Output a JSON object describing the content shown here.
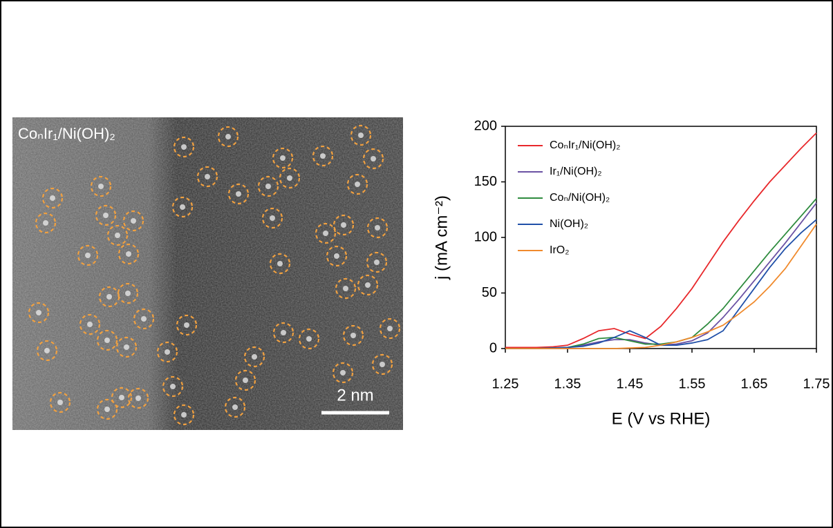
{
  "image": {
    "label": "CoₙIr₁/Ni(OH)₂",
    "scale_bar": "2 nm"
  },
  "chart_data": {
    "type": "line",
    "xlabel": "E (V vs RHE)",
    "ylabel": "j (mA cm⁻²)",
    "x": [
      1.25,
      1.275,
      1.3,
      1.325,
      1.35,
      1.375,
      1.4,
      1.425,
      1.45,
      1.475,
      1.5,
      1.525,
      1.55,
      1.575,
      1.6,
      1.625,
      1.65,
      1.675,
      1.7,
      1.725,
      1.75
    ],
    "xlim": [
      1.25,
      1.75
    ],
    "xticks": [
      1.25,
      1.35,
      1.45,
      1.55,
      1.65,
      1.75
    ],
    "ylim": [
      0,
      200
    ],
    "yticks": [
      0,
      50,
      100,
      150,
      200
    ],
    "legend": "upper left",
    "series": [
      {
        "name": "CoₙIr₁/Ni(OH)₂",
        "color": "#e8282b",
        "values": [
          1,
          1,
          1,
          1.5,
          3,
          9,
          16,
          18,
          13,
          9,
          20,
          36,
          54,
          75,
          96,
          115,
          133,
          150,
          165,
          180,
          194
        ]
      },
      {
        "name": "Ir₁/Ni(OH)₂",
        "color": "#6a51a3",
        "values": [
          0,
          0,
          0,
          0.5,
          1,
          3,
          6,
          8,
          8,
          5,
          3,
          4,
          7,
          14,
          28,
          44,
          61,
          78,
          95,
          113,
          131
        ]
      },
      {
        "name": "Coₙ/Ni(OH)₂",
        "color": "#2e8b3e",
        "values": [
          0,
          0,
          0,
          0.5,
          1,
          4,
          9,
          10,
          7,
          4,
          4,
          6,
          10,
          22,
          36,
          53,
          70,
          87,
          103,
          119,
          135
        ]
      },
      {
        "name": "Ni(OH)₂",
        "color": "#1f4fa8",
        "values": [
          0,
          0,
          0,
          0.5,
          1,
          2,
          5,
          10,
          16,
          10,
          3,
          3,
          5,
          8,
          16,
          35,
          54,
          73,
          90,
          104,
          116
        ]
      },
      {
        "name": "IrO₂",
        "color": "#f08a2c",
        "values": [
          0,
          0,
          0,
          0,
          0,
          0,
          0,
          0,
          0.5,
          1,
          3,
          6,
          10,
          15,
          21,
          31,
          42,
          56,
          72,
          92,
          112
        ]
      }
    ]
  }
}
